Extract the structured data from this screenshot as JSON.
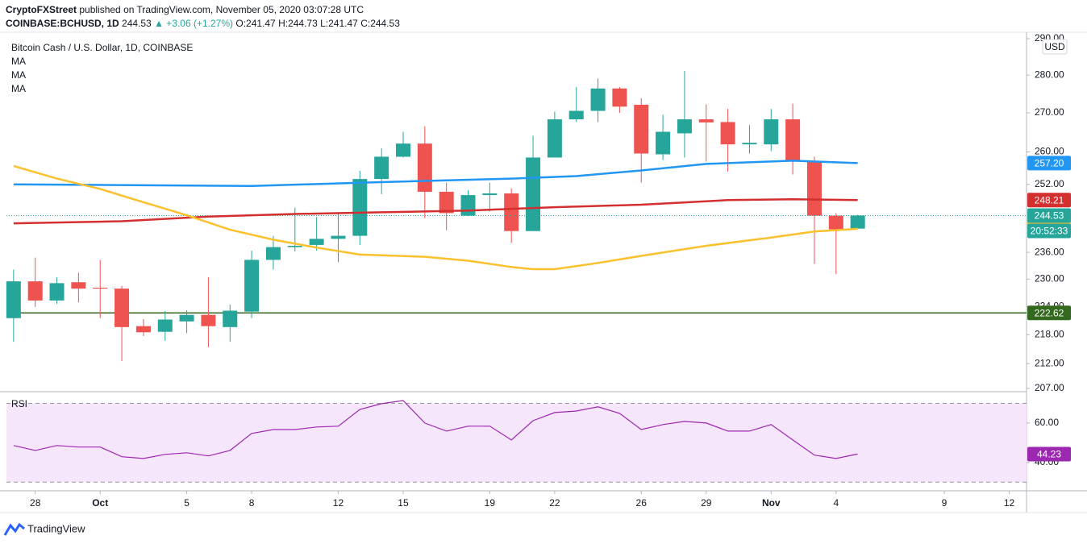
{
  "header": {
    "publisher": "CryptoFXStreet",
    "published": "published on TradingView.com, November 05, 2020 03:07:28 UTC",
    "symbol": "COINBASE:BCHUSD, 1D",
    "last": "244.53",
    "change": "▲ +3.06 (+1.27%)",
    "o": "O:241.47",
    "h": "H:244.73",
    "l": "L:241.47",
    "c": "C:244.53"
  },
  "footer": "TradingView",
  "chart_data": [
    {
      "type": "candlestick",
      "title": "Bitcoin Cash / U.S. Dollar, 1D, COINBASE",
      "currency": "USD",
      "x": [
        0,
        1,
        2,
        3,
        4,
        5,
        6,
        7,
        8,
        9,
        10,
        11,
        12,
        13,
        14,
        15,
        16,
        17,
        18,
        19,
        20,
        21,
        22,
        23,
        24,
        25,
        26,
        27,
        28,
        29,
        30,
        31,
        32,
        33,
        34,
        35,
        36,
        37,
        38,
        39
      ],
      "open": [
        221.5,
        229.5,
        225.3,
        229.3,
        228.1,
        227.9,
        219.8,
        218.6,
        220.8,
        222.2,
        219.6,
        222.9,
        234.3,
        237.2,
        237.7,
        239.1,
        239.8,
        253.3,
        258.8,
        262.1,
        250.2,
        244.5,
        249.4,
        249.8,
        240.9,
        258.6,
        268.3,
        270.5,
        276.4,
        272.1,
        259.4,
        264.7,
        268.3,
        267.6,
        261.9,
        261.9,
        268.3,
        257.6,
        244.5,
        241.47
      ],
      "high": [
        232.1,
        234.8,
        230.4,
        231.4,
        234.3,
        228.5,
        221.3,
        223.0,
        223.2,
        230.4,
        224.4,
        236.4,
        239.8,
        246.4,
        244.2,
        245.3,
        255.3,
        260.9,
        265.1,
        266.5,
        252.4,
        250.6,
        252.4,
        251.0,
        264.1,
        270.3,
        276.8,
        279.1,
        276.8,
        273.8,
        269.5,
        281.1,
        272.2,
        271.0,
        266.8,
        271.0,
        272.4,
        258.8,
        245.1,
        244.73
      ],
      "low": [
        216.5,
        223.9,
        224.6,
        224.9,
        221.5,
        212.5,
        217.7,
        216.7,
        218.3,
        215.4,
        216.5,
        221.5,
        232.1,
        236.2,
        236.4,
        233.8,
        237.7,
        249.6,
        258.6,
        243.9,
        241.1,
        244.4,
        245.5,
        238.2,
        240.9,
        258.6,
        267.6,
        267.6,
        270.0,
        252.4,
        258.0,
        258.6,
        257.6,
        255.1,
        259.6,
        260.2,
        254.4,
        233.4,
        231.1,
        241.47
      ],
      "close": [
        229.5,
        225.3,
        229.1,
        227.9,
        227.9,
        219.6,
        218.5,
        221.2,
        222.2,
        219.8,
        223.1,
        234.3,
        237.2,
        237.5,
        239.1,
        239.8,
        253.3,
        258.8,
        262.1,
        250.2,
        245.1,
        249.4,
        249.8,
        240.9,
        258.6,
        268.3,
        270.5,
        276.4,
        271.6,
        259.6,
        265.1,
        268.3,
        267.5,
        261.9,
        262.3,
        268.3,
        257.6,
        244.5,
        241.3,
        244.53
      ],
      "up_color": "#26a69a",
      "down_color": "#ef5350",
      "log_scale": true,
      "ylim": [
        206.5,
        291.8
      ],
      "yticks": [
        {
          "value": 290,
          "label": "290.00"
        },
        {
          "value": 280,
          "label": "280.00"
        },
        {
          "value": 270,
          "label": "270.00"
        },
        {
          "value": 260,
          "label": "260.00"
        },
        {
          "value": 252,
          "label": "252.00"
        },
        {
          "value": 236,
          "label": "236.00"
        },
        {
          "value": 230,
          "label": "230.00"
        },
        {
          "value": 224,
          "label": "224.00"
        },
        {
          "value": 218,
          "label": "218.00"
        },
        {
          "value": 212,
          "label": "212.00"
        },
        {
          "value": 207,
          "label": "207.00"
        }
      ],
      "xlim": [
        -0.33,
        46.8
      ],
      "xticks": [
        {
          "value": 1,
          "label": "28"
        },
        {
          "value": 4,
          "label": "Oct"
        },
        {
          "value": 8,
          "label": "5"
        },
        {
          "value": 11,
          "label": "8"
        },
        {
          "value": 15,
          "label": "12"
        },
        {
          "value": 18,
          "label": "15"
        },
        {
          "value": 22,
          "label": "19"
        },
        {
          "value": 25,
          "label": "22"
        },
        {
          "value": 29,
          "label": "26"
        },
        {
          "value": 32,
          "label": "29"
        },
        {
          "value": 35,
          "label": "Nov"
        },
        {
          "value": 38,
          "label": "4"
        },
        {
          "value": 43,
          "label": "9"
        },
        {
          "value": 46,
          "label": "12"
        }
      ],
      "series": [
        {
          "name": "MA",
          "color": "#2196f3",
          "x": [
            0,
            11,
            16,
            23,
            26,
            29,
            32,
            36,
            39
          ],
          "values": [
            252.0,
            251.6,
            252.4,
            253.4,
            254.0,
            255.4,
            257.0,
            257.8,
            257.2
          ],
          "last_label": "257.20"
        },
        {
          "name": "MA",
          "color": "#d32f2f",
          "x": [
            0,
            5,
            9,
            13,
            17,
            21,
            25,
            29,
            33,
            36,
            39
          ],
          "values": [
            242.7,
            243.2,
            244.3,
            244.9,
            245.3,
            245.7,
            246.5,
            247.1,
            248.2,
            248.4,
            248.21
          ],
          "last_label": "248.21"
        },
        {
          "name": "MA",
          "color": "#fbc02d",
          "x": [
            0,
            2,
            4,
            6,
            8,
            10,
            12,
            14,
            16,
            19,
            21,
            23,
            24,
            25,
            27,
            29,
            32,
            35,
            37,
            39
          ],
          "values": [
            256.5,
            253.4,
            250.9,
            247.7,
            244.6,
            241.2,
            238.9,
            237.1,
            235.5,
            235.0,
            234.1,
            232.7,
            232.2,
            232.2,
            233.6,
            235.2,
            237.5,
            239.4,
            240.8,
            241.42
          ],
          "last_label": "241.42"
        }
      ],
      "hline": {
        "value": 222.62,
        "label": "222.62",
        "color": "#33691e"
      },
      "last_label": "244.53",
      "countdown": "20:52:33"
    },
    {
      "type": "line",
      "title": "RSI",
      "x": [
        0,
        1,
        2,
        3,
        4,
        5,
        6,
        7,
        8,
        9,
        10,
        11,
        12,
        13,
        14,
        15,
        16,
        17,
        18,
        19,
        20,
        21,
        22,
        23,
        24,
        25,
        26,
        27,
        28,
        29,
        30,
        31,
        32,
        33,
        34,
        35,
        36,
        37,
        38,
        39
      ],
      "values": [
        48.6,
        46.1,
        48.6,
        47.8,
        47.8,
        42.9,
        42.0,
        44.1,
        44.9,
        43.3,
        46.1,
        54.7,
        56.7,
        56.7,
        58.0,
        58.4,
        66.9,
        69.8,
        71.4,
        60.0,
        55.9,
        58.4,
        58.4,
        51.4,
        61.2,
        65.3,
        66.1,
        68.2,
        64.9,
        56.7,
        59.2,
        60.8,
        60.0,
        55.9,
        55.9,
        59.2,
        51.4,
        43.7,
        42.0,
        44.23
      ],
      "color": "#9c27b0",
      "fill": "#f5e6fb",
      "ylim": [
        26,
        75.5
      ],
      "yticks": [
        {
          "value": 60,
          "label": "60.00"
        },
        {
          "value": 40,
          "label": "40.00"
        }
      ],
      "bands": [
        30,
        70
      ],
      "last_label": "44.23"
    }
  ]
}
